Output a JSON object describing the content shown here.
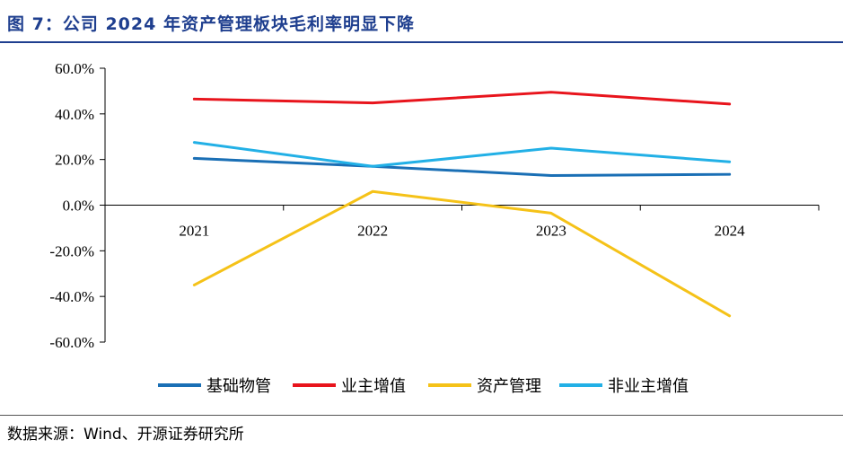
{
  "figure": {
    "title": "图 7：公司 2024 年资产管理板块毛利率明显下降",
    "source": "数据来源：Wind、开源证券研究所"
  },
  "chart_data": {
    "type": "line",
    "categories": [
      "2021",
      "2022",
      "2023",
      "2024"
    ],
    "ylim": [
      -60,
      60
    ],
    "yticks": [
      "60.0%",
      "40.0%",
      "20.0%",
      "0.0%",
      "-20.0%",
      "-40.0%",
      "-60.0%"
    ],
    "ytick_values": [
      60,
      40,
      20,
      0,
      -20,
      -40,
      -60
    ],
    "grid": false,
    "legend_position": "bottom",
    "series": [
      {
        "name": "基础物管",
        "color": "#1a6fb5",
        "values": [
          20.5,
          17.0,
          13.0,
          13.5
        ]
      },
      {
        "name": "业主增值",
        "color": "#e8141c",
        "values": [
          46.5,
          44.8,
          49.5,
          44.3
        ]
      },
      {
        "name": "资产管理",
        "color": "#f5c218",
        "values": [
          -35.0,
          6.0,
          -3.5,
          -48.5
        ]
      },
      {
        "name": "非业主增值",
        "color": "#22b0e6",
        "values": [
          27.5,
          17.0,
          25.0,
          19.0
        ]
      }
    ]
  }
}
